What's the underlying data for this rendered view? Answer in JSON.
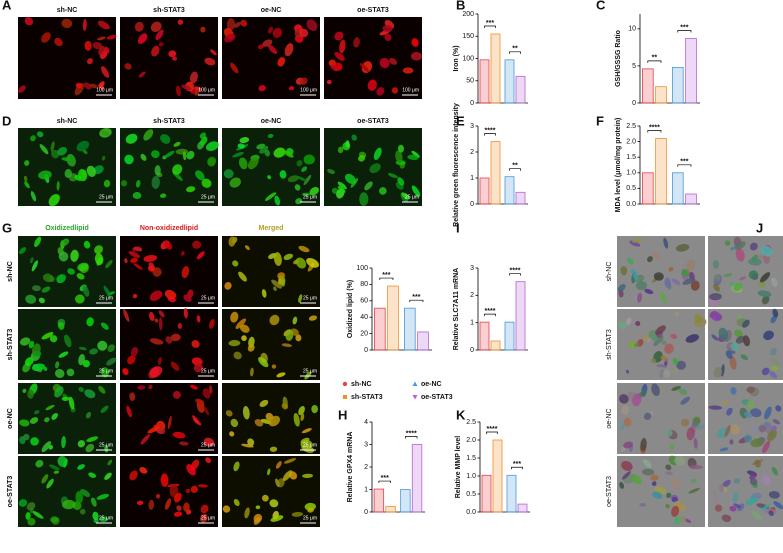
{
  "panel_letters": [
    "A",
    "B",
    "C",
    "D",
    "E",
    "F",
    "G",
    "H",
    "I",
    "J",
    "K"
  ],
  "legend": [
    {
      "name": "sh-NC",
      "color": "#e8404a"
    },
    {
      "name": "sh-STAT3",
      "color": "#f0902a"
    },
    {
      "name": "oe-NC",
      "color": "#4a9ad8"
    },
    {
      "name": "oe-STAT3",
      "color": "#b763d6"
    }
  ],
  "panel_A": {
    "labels": [
      "sh-NC",
      "sh-STAT3",
      "oe-NC",
      "oe-STAT3"
    ],
    "scale_bar": "100 μm"
  },
  "panel_D": {
    "labels": [
      "sh-NC",
      "sh-STAT3",
      "oe-NC",
      "oe-STAT3"
    ],
    "scale_bar": "25 μm"
  },
  "panel_G": {
    "columns": [
      "Oxidizedlipid",
      "Non-oxidizedlipid",
      "Merged"
    ],
    "rows": [
      "sh-NC",
      "sh-STAT3",
      "oe-NC",
      "oe-STAT3"
    ],
    "scale_bar": "25 μm"
  },
  "panel_J": {
    "rows": [
      "sh-NC",
      "sh-STAT3",
      "oe-NC",
      "oe-STAT3"
    ]
  },
  "chart_data": [
    {
      "type": "bar",
      "ylabel": "Iron (%)",
      "values": [
        97,
        155,
        97,
        60
      ],
      "ylim": [
        0,
        200
      ],
      "yticks": [
        0,
        50,
        100,
        150,
        200
      ],
      "significance": [
        "***",
        "**"
      ],
      "colors": [
        "#e8404a",
        "#f0902a",
        "#4a9ad8",
        "#b763d6"
      ]
    },
    {
      "type": "bar",
      "ylabel": "GSH/GSSG Ratio",
      "values": [
        4.6,
        2.2,
        4.8,
        8.7
      ],
      "ylim": [
        0,
        12
      ],
      "yticks": [
        0,
        5,
        10
      ],
      "significance": [
        "**",
        "***"
      ],
      "colors": [
        "#e8404a",
        "#f0902a",
        "#4a9ad8",
        "#b763d6"
      ]
    },
    {
      "type": "bar",
      "ylabel": "Relative green fluorescence intensity",
      "values": [
        1.0,
        2.4,
        1.05,
        0.45
      ],
      "ylim": [
        0,
        3
      ],
      "yticks": [
        0,
        1,
        2,
        3
      ],
      "significance": [
        "****",
        "**"
      ],
      "colors": [
        "#e8404a",
        "#f0902a",
        "#4a9ad8",
        "#b763d6"
      ]
    },
    {
      "type": "bar",
      "ylabel": "MDA level (μmol/mg protein)",
      "values": [
        1.0,
        2.1,
        1.0,
        0.32
      ],
      "ylim": [
        0,
        2.5
      ],
      "yticks": [
        {
          "value": 0,
          "label": "0.0"
        },
        0.5,
        {
          "value": 1,
          "label": "1.0"
        },
        1.5,
        {
          "value": 2,
          "label": "2.0"
        },
        2.5
      ],
      "significance": [
        "****",
        "***"
      ],
      "colors": [
        "#e8404a",
        "#f0902a",
        "#4a9ad8",
        "#b763d6"
      ]
    },
    {
      "type": "bar",
      "ylabel": "Oxidized lipid (%)",
      "values": [
        51,
        78,
        51,
        22
      ],
      "ylim": [
        0,
        100
      ],
      "yticks": [
        0,
        20,
        40,
        60,
        80,
        100
      ],
      "significance": [
        "***",
        "***"
      ],
      "colors": [
        "#e8404a",
        "#f0902a",
        "#4a9ad8",
        "#b763d6"
      ]
    },
    {
      "type": "bar",
      "ylabel": "Relative SLC7A11 mRNA",
      "values": [
        1.02,
        0.33,
        1.02,
        2.5
      ],
      "ylim": [
        0,
        3
      ],
      "yticks": [
        0,
        1,
        2,
        3
      ],
      "significance": [
        "****",
        "****"
      ],
      "colors": [
        "#e8404a",
        "#f0902a",
        "#4a9ad8",
        "#b763d6"
      ]
    },
    {
      "type": "bar",
      "ylabel": "Relative GPX4 mRNA",
      "values": [
        1.02,
        0.25,
        1.0,
        3.0
      ],
      "ylim": [
        0,
        4
      ],
      "yticks": [
        0,
        1,
        2,
        3,
        4
      ],
      "significance": [
        "***",
        "****"
      ],
      "colors": [
        "#e8404a",
        "#f0902a",
        "#4a9ad8",
        "#b763d6"
      ]
    },
    {
      "type": "bar",
      "ylabel": "Relative MMP level",
      "values": [
        1.02,
        2.0,
        1.02,
        0.22
      ],
      "ylim": [
        0,
        2.5
      ],
      "yticks": [
        {
          "value": 0,
          "label": "0.0"
        },
        0.5,
        {
          "value": 1,
          "label": "1.0"
        },
        1.5,
        {
          "value": 2,
          "label": "2.0"
        },
        2.5
      ],
      "significance": [
        "****",
        "***"
      ],
      "colors": [
        "#e8404a",
        "#f0902a",
        "#4a9ad8",
        "#b763d6"
      ]
    }
  ]
}
